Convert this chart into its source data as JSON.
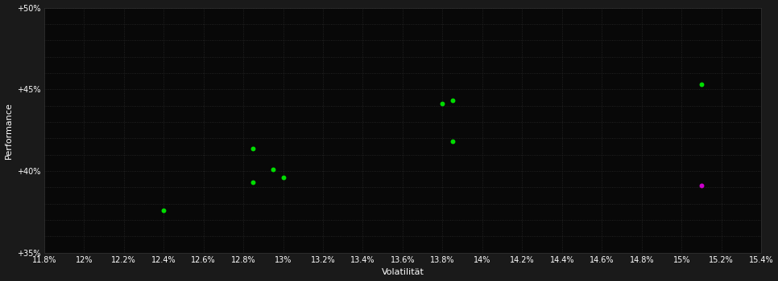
{
  "background_color": "#1a1a1a",
  "plot_bg_color": "#080808",
  "grid_color": "#2a2a2a",
  "text_color": "#ffffff",
  "xlabel": "Volatilität",
  "ylabel": "Performance",
  "xlim": [
    0.118,
    0.154
  ],
  "ylim": [
    0.35,
    0.5
  ],
  "xticks_major": [
    0.118,
    0.12,
    0.122,
    0.124,
    0.126,
    0.128,
    0.13,
    0.132,
    0.134,
    0.136,
    0.138,
    0.14,
    0.142,
    0.144,
    0.146,
    0.148,
    0.15,
    0.152,
    0.154
  ],
  "xtick_labels": [
    "11.8%",
    "12%",
    "12.2%",
    "12.4%",
    "12.6%",
    "12.8%",
    "13%",
    "13.2%",
    "13.4%",
    "13.6%",
    "13.8%",
    "14%",
    "14.2%",
    "14.4%",
    "14.6%",
    "14.8%",
    "15%",
    "15.2%",
    "15.4%"
  ],
  "yticks_major": [
    0.35,
    0.4,
    0.45,
    0.5
  ],
  "ytick_labels": [
    "+35%",
    "+40%",
    "+45%",
    "+50%"
  ],
  "yticks_minor": [
    0.35,
    0.36,
    0.37,
    0.38,
    0.39,
    0.4,
    0.41,
    0.42,
    0.43,
    0.44,
    0.45,
    0.46,
    0.47,
    0.48,
    0.49,
    0.5
  ],
  "green_points": [
    [
      0.124,
      0.376
    ],
    [
      0.1285,
      0.393
    ],
    [
      0.13,
      0.396
    ],
    [
      0.1295,
      0.401
    ],
    [
      0.1285,
      0.414
    ],
    [
      0.1385,
      0.418
    ],
    [
      0.138,
      0.4415
    ],
    [
      0.1385,
      0.4435
    ],
    [
      0.151,
      0.453
    ]
  ],
  "magenta_points": [
    [
      0.151,
      0.391
    ]
  ],
  "point_size": 18,
  "green_color": "#00dd00",
  "magenta_color": "#cc00cc"
}
